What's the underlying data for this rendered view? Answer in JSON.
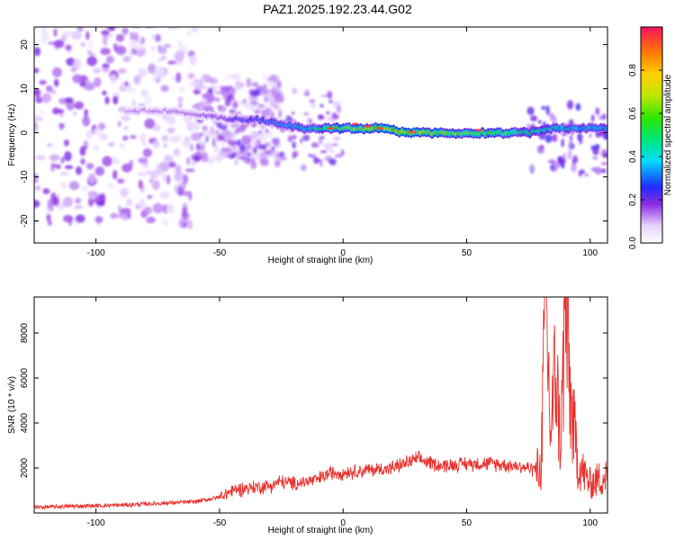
{
  "title": "PAZ1.2025.192.23.44.G02",
  "colors": {
    "snr_line": "#e8312c",
    "axis": "#000000"
  },
  "chart_data": [
    {
      "type": "heatmap",
      "xlabel": "Height of straight line (km)",
      "ylabel": "Frequency (Hz)",
      "xlim": [
        -125,
        107
      ],
      "ylim": [
        -25,
        24
      ],
      "x_ticks": [
        -100,
        -50,
        0,
        50,
        100
      ],
      "y_ticks": [
        -20,
        -10,
        0,
        10,
        20
      ],
      "colorbar": {
        "label": "Normalized spectral amplitude",
        "range": [
          0.0,
          1.0
        ],
        "ticks": [
          "0.0",
          "0.2",
          "0.4",
          "0.6",
          "0.8"
        ],
        "colormap": "rainbow"
      },
      "ridge": [
        {
          "x": -120,
          "y": 5,
          "amp": 0.05
        },
        {
          "x": -100,
          "y": 5,
          "amp": 0.05
        },
        {
          "x": -85,
          "y": 5,
          "amp": 0.12
        },
        {
          "x": -70,
          "y": 5,
          "amp": 0.12
        },
        {
          "x": -55,
          "y": 4,
          "amp": 0.15
        },
        {
          "x": -45,
          "y": 3,
          "amp": 0.2
        },
        {
          "x": -35,
          "y": 3,
          "amp": 0.25
        },
        {
          "x": -25,
          "y": 2,
          "amp": 0.3
        },
        {
          "x": -15,
          "y": 1,
          "amp": 0.35
        },
        {
          "x": -5,
          "y": 1,
          "amp": 0.5
        },
        {
          "x": 5,
          "y": 1,
          "amp": 0.6
        },
        {
          "x": 15,
          "y": 1,
          "amp": 0.65
        },
        {
          "x": 25,
          "y": 0,
          "amp": 0.65
        },
        {
          "x": 35,
          "y": 0,
          "amp": 0.6
        },
        {
          "x": 45,
          "y": 0,
          "amp": 0.55
        },
        {
          "x": 55,
          "y": 0,
          "amp": 0.55
        },
        {
          "x": 65,
          "y": 0,
          "amp": 0.5
        },
        {
          "x": 75,
          "y": 0,
          "amp": 0.45
        },
        {
          "x": 85,
          "y": 1,
          "amp": 0.4
        },
        {
          "x": 95,
          "y": 1,
          "amp": 0.35
        },
        {
          "x": 105,
          "y": 1,
          "amp": 0.35
        }
      ]
    },
    {
      "type": "line",
      "xlabel": "Height of straight line (km)",
      "ylabel": "SNR (10 * v/v)",
      "xlim": [
        -125,
        107
      ],
      "ylim": [
        0,
        9600
      ],
      "x_ticks": [
        -100,
        -50,
        0,
        50,
        100
      ],
      "y_ticks": [
        2000,
        4000,
        6000,
        8000
      ],
      "series": [
        {
          "x": [
            -125,
            -110,
            -90,
            -70,
            -60,
            -50,
            -45,
            -40,
            -30,
            -25,
            -20,
            -15,
            -10,
            -5,
            0,
            10,
            20,
            25,
            30,
            40,
            50,
            60,
            70,
            75,
            80,
            82,
            84,
            86,
            88,
            90,
            92,
            95,
            100,
            107
          ],
          "y": [
            250,
            300,
            350,
            450,
            500,
            700,
            1000,
            1100,
            1200,
            1400,
            1300,
            1400,
            1500,
            1800,
            1800,
            1900,
            2000,
            2200,
            2400,
            2100,
            2200,
            2200,
            2100,
            2000,
            1900,
            9500,
            3500,
            6500,
            3000,
            9000,
            5000,
            2200,
            1300,
            1700
          ]
        }
      ]
    }
  ]
}
